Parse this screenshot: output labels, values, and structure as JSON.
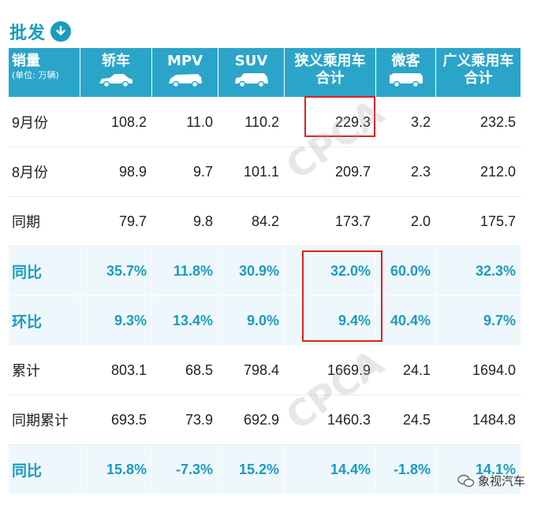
{
  "title": "批发",
  "header": {
    "first_label": "销量",
    "first_sub": "(单位: 万辆)",
    "cols": [
      "轿车",
      "MPV",
      "SUV",
      "狭义乘用车合计",
      "微客",
      "广义乘用车合计"
    ]
  },
  "rows": [
    {
      "label": "9月份",
      "type": "plain",
      "values": [
        "108.2",
        "11.0",
        "110.2",
        "229.3",
        "3.2",
        "232.5"
      ]
    },
    {
      "label": "8月份",
      "type": "plain",
      "values": [
        "98.9",
        "9.7",
        "101.1",
        "209.7",
        "2.3",
        "212.0"
      ]
    },
    {
      "label": "同期",
      "type": "plain",
      "values": [
        "79.7",
        "9.8",
        "84.2",
        "173.7",
        "2.0",
        "175.7"
      ]
    },
    {
      "label": "同比",
      "type": "pct",
      "values": [
        "35.7%",
        "11.8%",
        "30.9%",
        "32.0%",
        "60.0%",
        "32.3%"
      ]
    },
    {
      "label": "环比",
      "type": "pct",
      "values": [
        "9.3%",
        "13.4%",
        "9.0%",
        "9.4%",
        "40.4%",
        "9.7%"
      ]
    },
    {
      "label": "累计",
      "type": "plain",
      "values": [
        "803.1",
        "68.5",
        "798.4",
        "1669.9",
        "24.1",
        "1694.0"
      ]
    },
    {
      "label": "同期累计",
      "type": "plain",
      "values": [
        "693.5",
        "73.9",
        "692.9",
        "1460.3",
        "24.5",
        "1484.8"
      ]
    },
    {
      "label": "同比",
      "type": "pct",
      "values": [
        "15.8%",
        "-7.3%",
        "15.2%",
        "14.4%",
        "-1.8%",
        "14.1%"
      ]
    }
  ],
  "watermark": "CPCA",
  "wechat_account": "象视汽车",
  "colors": {
    "header_bg": "#2aa5c9",
    "accent": "#1a9cc0",
    "highlight": "#e02020",
    "pct_row_bg": "#eef7fb"
  }
}
